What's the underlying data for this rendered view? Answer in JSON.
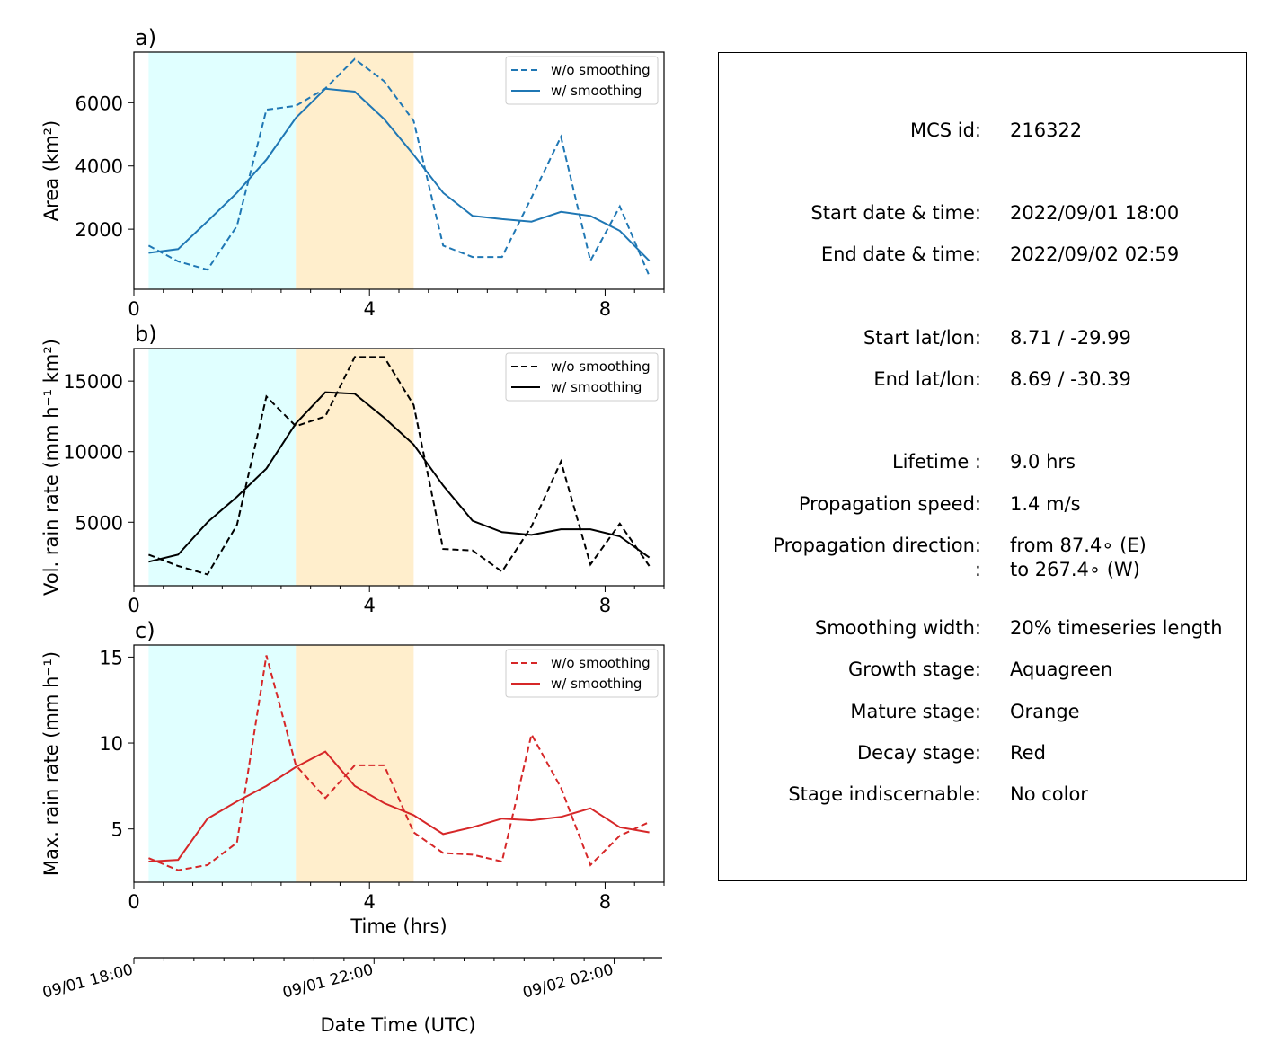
{
  "chart_data": [
    {
      "panel_label": "a)",
      "type": "line",
      "ylabel": "Area  (km²)",
      "xlim": [
        0,
        9.0
      ],
      "ylim": [
        100,
        7600
      ],
      "yticks": [
        2000,
        4000,
        6000
      ],
      "xticks": [
        0,
        4,
        8
      ],
      "color": "#1f77b4",
      "x": [
        0.25,
        0.75,
        1.25,
        1.75,
        2.25,
        2.75,
        3.25,
        3.75,
        4.25,
        4.75,
        5.25,
        5.75,
        6.25,
        6.75,
        7.25,
        7.75,
        8.25,
        8.75
      ],
      "series": [
        {
          "name": "w/o smoothing",
          "style": "dashed",
          "values": [
            1480,
            980,
            720,
            2100,
            5780,
            5900,
            6450,
            7380,
            6680,
            5420,
            1480,
            1120,
            1120,
            3000,
            4920,
            1000,
            2720,
            520
          ]
        },
        {
          "name": "w/ smoothing",
          "style": "solid",
          "values": [
            1250,
            1370,
            2250,
            3150,
            4200,
            5520,
            6440,
            6350,
            5480,
            4350,
            3150,
            2420,
            2320,
            2240,
            2550,
            2420,
            1950,
            1000
          ]
        }
      ]
    },
    {
      "panel_label": "b)",
      "type": "line",
      "ylabel": "Vol. rain rate (mm h⁻¹ km²)",
      "xlim": [
        0,
        9.0
      ],
      "ylim": [
        500,
        17300
      ],
      "yticks": [
        5000,
        10000,
        15000
      ],
      "xticks": [
        0,
        4,
        8
      ],
      "color": "#000000",
      "x": [
        0.25,
        0.75,
        1.25,
        1.75,
        2.25,
        2.75,
        3.25,
        3.75,
        4.25,
        4.75,
        5.25,
        5.75,
        6.25,
        6.75,
        7.25,
        7.75,
        8.25,
        8.75
      ],
      "series": [
        {
          "name": "w/o smoothing",
          "style": "dashed",
          "values": [
            2700,
            1900,
            1300,
            4800,
            13900,
            11800,
            12500,
            16700,
            16700,
            13300,
            3100,
            3000,
            1500,
            4700,
            9300,
            2000,
            4900,
            1900
          ]
        },
        {
          "name": "w/ smoothing",
          "style": "solid",
          "values": [
            2200,
            2700,
            5000,
            6800,
            8800,
            12000,
            14200,
            14100,
            12400,
            10500,
            7600,
            5100,
            4300,
            4100,
            4500,
            4500,
            4000,
            2500
          ]
        }
      ]
    },
    {
      "panel_label": "c)",
      "type": "line",
      "ylabel": "Max. rain rate  (mm h⁻¹)",
      "xlabel": "Time (hrs)",
      "xlim": [
        0,
        9.0
      ],
      "ylim": [
        1.9,
        15.7
      ],
      "yticks": [
        5,
        10,
        15
      ],
      "xticks": [
        0,
        4,
        8
      ],
      "color": "#d62728",
      "x": [
        0.25,
        0.75,
        1.25,
        1.75,
        2.25,
        2.75,
        3.25,
        3.75,
        4.25,
        4.75,
        5.25,
        5.75,
        6.25,
        6.75,
        7.25,
        7.75,
        8.25,
        8.75
      ],
      "series": [
        {
          "name": "w/o smoothing",
          "style": "dashed",
          "values": [
            3.3,
            2.6,
            2.9,
            4.2,
            15.1,
            8.7,
            6.8,
            8.7,
            8.7,
            4.8,
            3.6,
            3.5,
            3.1,
            10.5,
            7.4,
            2.9,
            4.6,
            5.4
          ]
        },
        {
          "name": "w/ smoothing",
          "style": "solid",
          "values": [
            3.1,
            3.2,
            5.6,
            6.6,
            7.5,
            8.6,
            9.5,
            7.5,
            6.5,
            5.8,
            4.7,
            5.1,
            5.6,
            5.5,
            5.7,
            6.2,
            5.1,
            4.8
          ]
        }
      ]
    }
  ],
  "stage_shading": [
    {
      "name": "growth",
      "x_start": 0.25,
      "x_end": 2.75,
      "color": "#e0ffff"
    },
    {
      "name": "mature",
      "x_start": 2.75,
      "x_end": 4.75,
      "color": "#ffeecc"
    }
  ],
  "date_axis": {
    "xlabel": "Date Time (UTC)",
    "tick_labels": [
      "09/01 18:00",
      "09/01 22:00",
      "09/02 02:00"
    ],
    "tick_hours": [
      0,
      4,
      8
    ]
  },
  "info_panel": [
    {
      "label": "MCS id:",
      "value": "216322"
    },
    {
      "label": "Start date & time:",
      "value": "2022/09/01 18:00"
    },
    {
      "label": "End date & time:",
      "value": "2022/09/02 02:59"
    },
    {
      "label": "Start lat/lon:",
      "value": "8.71 / -29.99"
    },
    {
      "label": "End lat/lon:",
      "value": "8.69 / -30.39"
    },
    {
      "label": "Lifetime :",
      "value": "9.0 hrs"
    },
    {
      "label": "Propagation speed:",
      "value": "1.4 m/s"
    },
    {
      "label": "Propagation direction:",
      "value": "from  87.4∘ (E)"
    },
    {
      "label": ":",
      "value": "to   267.4∘ (W)"
    },
    {
      "label": "Smoothing width:",
      "value": "20% timeseries length"
    },
    {
      "label": "Growth stage:",
      "value": "Aquagreen"
    },
    {
      "label": "Mature stage:",
      "value": "Orange"
    },
    {
      "label": "Decay stage:",
      "value": "Red"
    },
    {
      "label": "Stage indiscernable:",
      "value": "No color"
    }
  ]
}
